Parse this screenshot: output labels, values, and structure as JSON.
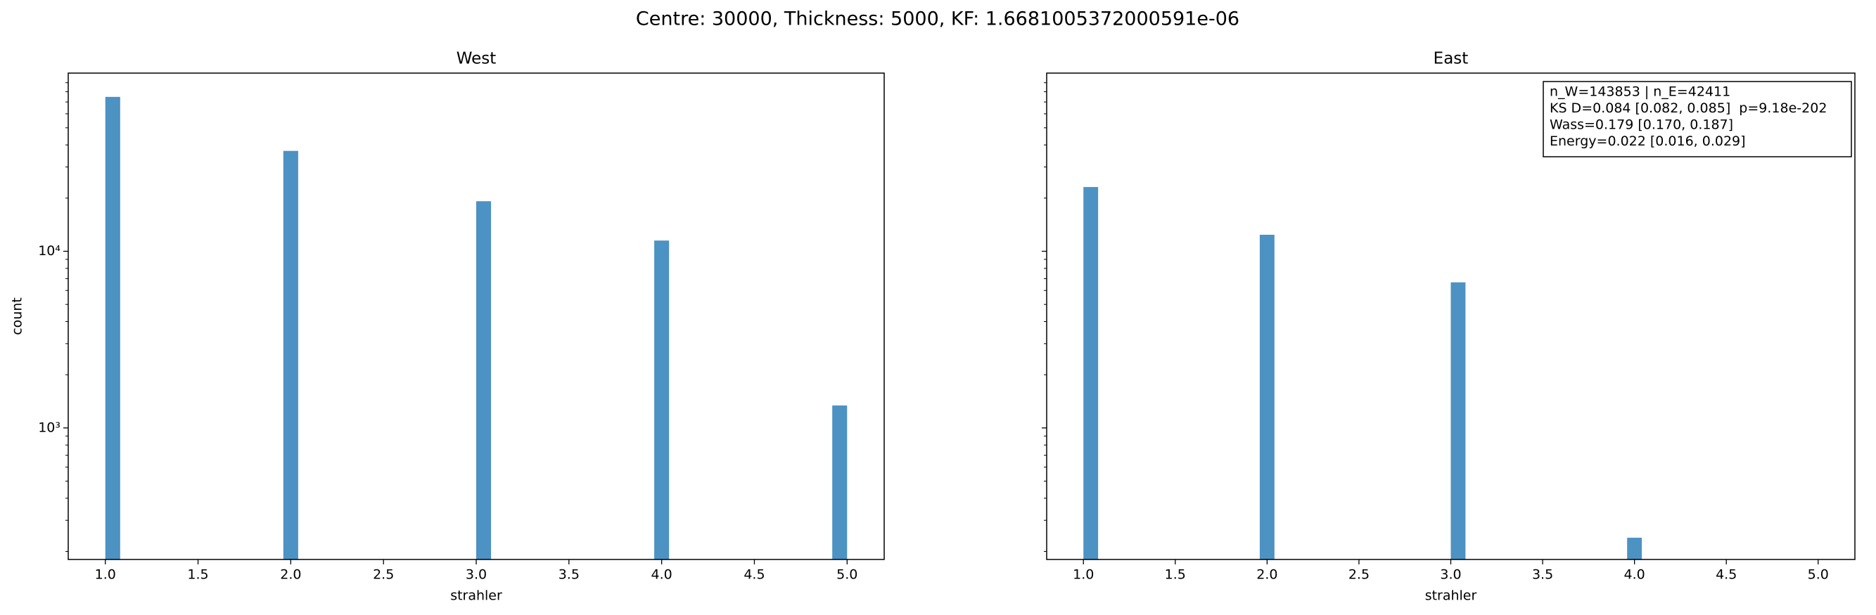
{
  "title": "Centre: 30000, Thickness: 5000, KF: 1.6681005372000591e-06",
  "chart_data": [
    {
      "type": "histogram",
      "title": "West",
      "xlabel": "strahler",
      "ylabel": "count",
      "color": "#4c92c3",
      "log_y": true,
      "bins": [
        1.0,
        1.08,
        1.16,
        1.24,
        1.32,
        1.4,
        1.48,
        1.56,
        1.64,
        1.72,
        1.8,
        1.88,
        1.96,
        2.04,
        2.12,
        2.2,
        2.28,
        2.36,
        2.44,
        2.52,
        2.6,
        2.68,
        2.76,
        2.84,
        2.92,
        3.0,
        3.08,
        3.16,
        3.24,
        3.32,
        3.4,
        3.48,
        3.56,
        3.64,
        3.72,
        3.8,
        3.88,
        3.96,
        4.04,
        4.12,
        4.2,
        4.28,
        4.36,
        4.44,
        4.52,
        4.6,
        4.68,
        4.76,
        4.84,
        4.92,
        5.0
      ],
      "counts": [
        74800,
        0,
        0,
        0,
        0,
        0,
        0,
        0,
        0,
        0,
        0,
        0,
        37000,
        0,
        0,
        0,
        0,
        0,
        0,
        0,
        0,
        0,
        0,
        0,
        0,
        19200,
        0,
        0,
        0,
        0,
        0,
        0,
        0,
        0,
        0,
        0,
        0,
        11500,
        0,
        0,
        0,
        0,
        0,
        0,
        0,
        0,
        0,
        0,
        0,
        1340
      ],
      "xlim": [
        0.8,
        5.2
      ],
      "ylim": [
        180,
        102000
      ],
      "xticks": [
        {
          "value": 1,
          "label": "1.0"
        },
        {
          "value": 1.5,
          "label": "1.5"
        },
        {
          "value": 2,
          "label": "2.0"
        },
        {
          "value": 2.5,
          "label": "2.5"
        },
        {
          "value": 3,
          "label": "3.0"
        },
        {
          "value": 3.5,
          "label": "3.5"
        },
        {
          "value": 4,
          "label": "4.0"
        },
        {
          "value": 4.5,
          "label": "4.5"
        },
        {
          "value": 5,
          "label": "5.0"
        }
      ],
      "yticks": [
        {
          "value": 1000,
          "label": "10³"
        },
        {
          "value": 10000,
          "label": "10⁴"
        }
      ],
      "yminorticks": [
        200,
        300,
        400,
        500,
        600,
        700,
        800,
        900,
        2000,
        3000,
        4000,
        5000,
        6000,
        7000,
        8000,
        9000,
        20000,
        30000,
        40000,
        50000,
        60000,
        70000,
        80000,
        90000
      ]
    },
    {
      "type": "histogram",
      "title": "East",
      "xlabel": "strahler",
      "color": "#4c92c3",
      "log_y": true,
      "bins": [
        1.0,
        1.08,
        1.16,
        1.24,
        1.32,
        1.4,
        1.48,
        1.56,
        1.64,
        1.72,
        1.8,
        1.88,
        1.96,
        2.04,
        2.12,
        2.2,
        2.28,
        2.36,
        2.44,
        2.52,
        2.6,
        2.68,
        2.76,
        2.84,
        2.92,
        3.0,
        3.08,
        3.16,
        3.24,
        3.32,
        3.4,
        3.48,
        3.56,
        3.64,
        3.72,
        3.8,
        3.88,
        3.96,
        4.04,
        4.12,
        4.2,
        4.28,
        4.36,
        4.44,
        4.52,
        4.6,
        4.68,
        4.76,
        4.84,
        4.92,
        5.0
      ],
      "counts": [
        23100,
        0,
        0,
        0,
        0,
        0,
        0,
        0,
        0,
        0,
        0,
        0,
        12400,
        0,
        0,
        0,
        0,
        0,
        0,
        0,
        0,
        0,
        0,
        0,
        0,
        6670,
        0,
        0,
        0,
        0,
        0,
        0,
        0,
        0,
        0,
        0,
        0,
        239,
        0,
        0,
        0,
        0,
        0,
        0,
        0,
        0,
        0,
        0,
        0,
        0
      ],
      "xlim": [
        0.8,
        5.2
      ],
      "ylim": [
        180,
        102000
      ],
      "xticks": [
        {
          "value": 1,
          "label": "1.0"
        },
        {
          "value": 1.5,
          "label": "1.5"
        },
        {
          "value": 2,
          "label": "2.0"
        },
        {
          "value": 2.5,
          "label": "2.5"
        },
        {
          "value": 3,
          "label": "3.0"
        },
        {
          "value": 3.5,
          "label": "3.5"
        },
        {
          "value": 4,
          "label": "4.0"
        },
        {
          "value": 4.5,
          "label": "4.5"
        },
        {
          "value": 5,
          "label": "5.0"
        }
      ],
      "yticks": [
        1000,
        10000
      ],
      "yminorticks": [
        200,
        300,
        400,
        500,
        600,
        700,
        800,
        900,
        2000,
        3000,
        4000,
        5000,
        6000,
        7000,
        8000,
        9000,
        20000,
        30000,
        40000,
        50000,
        60000,
        70000,
        80000,
        90000
      ],
      "annotation": [
        "n_W=143853 | n_E=42411",
        "KS D=0.084 [0.082, 0.085]  p=9.18e-202",
        "Wass=0.179 [0.170, 0.187]",
        "Energy=0.022 [0.016, 0.029]"
      ]
    }
  ]
}
